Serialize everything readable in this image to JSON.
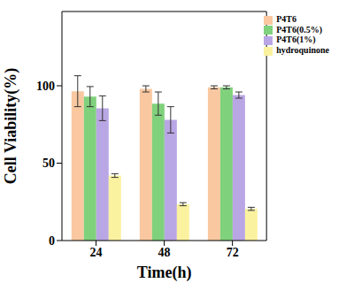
{
  "chart_data": {
    "type": "bar",
    "x_label": "Time(h)",
    "y_label": "Cell Viability(%)",
    "categories": [
      "24",
      "48",
      "72"
    ],
    "series": [
      {
        "name": "P4T6",
        "color": "#f9c8a0",
        "values": [
          96.5,
          98,
          99
        ],
        "errors": [
          10,
          2,
          1
        ]
      },
      {
        "name": "P4T6(0.5%)",
        "color": "#80d17c",
        "values": [
          93,
          88.5,
          99
        ],
        "errors": [
          6.5,
          7.5,
          1
        ]
      },
      {
        "name": "P4T6(1%)",
        "color": "#b9a6e4",
        "values": [
          85.5,
          78,
          94
        ],
        "errors": [
          8,
          8.5,
          2
        ]
      },
      {
        "name": "hydroquinone",
        "color": "#fbf2a0",
        "values": [
          42,
          23.5,
          20.5
        ],
        "errors": [
          1.2,
          1,
          1
        ]
      }
    ],
    "ylim": [
      0,
      148
    ],
    "yticks": [
      0,
      50,
      100
    ],
    "legend": "upper right"
  }
}
